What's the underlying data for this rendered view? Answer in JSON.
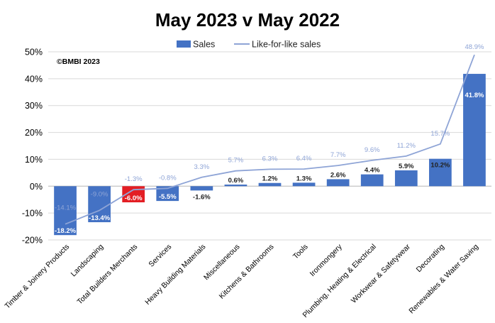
{
  "chart_data": {
    "type": "bar",
    "title": "May 2023 v May 2022",
    "annotation": "©BMBI 2023",
    "categories": [
      "Timber & Joinery Products",
      "Landscaping",
      "Total Builders Merchants",
      "Services",
      "Heavy Building Materials",
      "Miscellaneous",
      "Kitchens & Bathrooms",
      "Tools",
      "Ironmongery",
      "Plumbing, Heating & Electrical",
      "Workwear & Safetywear",
      "Decorating",
      "Renewables & Water Saving"
    ],
    "series": [
      {
        "name": "Sales",
        "type": "bar",
        "values": [
          -18.2,
          -13.4,
          -6.0,
          -5.5,
          -1.6,
          0.6,
          1.2,
          1.3,
          2.6,
          4.4,
          5.9,
          10.2,
          41.8
        ],
        "labels": [
          "-18.2%",
          "-13.4%",
          "-6.0%",
          "-5.5%",
          "-1.6%",
          "0.6%",
          "1.2%",
          "1.3%",
          "2.6%",
          "4.4%",
          "5.9%",
          "10.2%",
          "41.8%"
        ],
        "color": "#4472c4",
        "highlight_index": 2,
        "highlight_color": "#e31e24"
      },
      {
        "name": "Like-for-like sales",
        "type": "line",
        "values": [
          -14.1,
          -9.0,
          -1.3,
          -0.8,
          3.3,
          5.7,
          6.3,
          6.4,
          7.7,
          9.6,
          11.2,
          15.7,
          48.9
        ],
        "labels": [
          "-14.1%",
          "-9.0%",
          "-1.3%",
          "-0.8%",
          "3.3%",
          "5.7%",
          "6.3%",
          "6.4%",
          "7.7%",
          "9.6%",
          "11.2%",
          "15.7%",
          "48.9%"
        ],
        "color": "#8ea4d6"
      }
    ],
    "ylim": [
      -20,
      50
    ],
    "yticks": [
      -20,
      -10,
      0,
      10,
      20,
      30,
      40,
      50
    ],
    "ytick_labels": [
      "-20%",
      "-10%",
      "0%",
      "10%",
      "20%",
      "30%",
      "40%",
      "50%"
    ],
    "xlabel": "",
    "ylabel": "",
    "grid": true,
    "legend_position": "top"
  }
}
